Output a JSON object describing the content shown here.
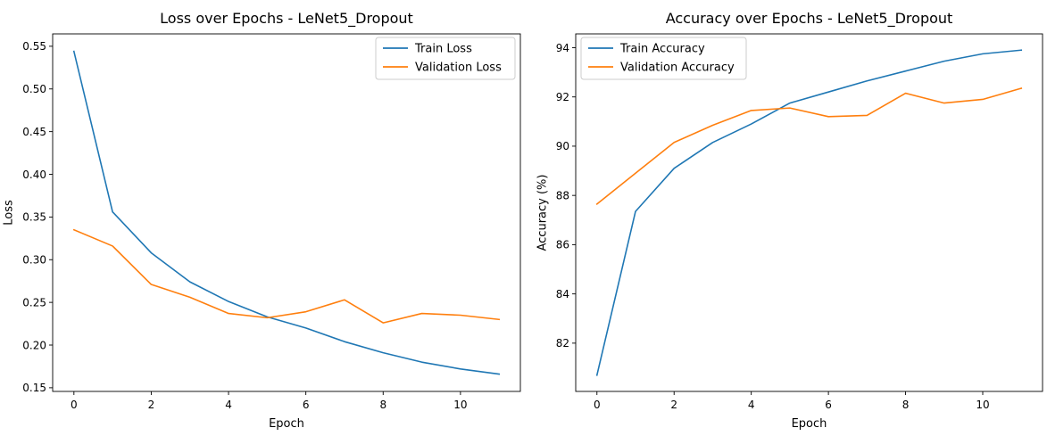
{
  "chart_data": [
    {
      "type": "line",
      "title": "Loss over Epochs - LeNet5_Dropout",
      "xlabel": "Epoch",
      "ylabel": "Loss",
      "xlim": [
        -0.55,
        11.55
      ],
      "ylim": [
        0.1457,
        0.5645
      ],
      "xticks": [
        0,
        2,
        4,
        6,
        8,
        10
      ],
      "yticks": [
        0.15,
        0.2,
        0.25,
        0.3,
        0.35,
        0.4,
        0.45,
        0.5,
        0.55
      ],
      "grid": false,
      "legend_position": "top-right",
      "x": [
        0,
        1,
        2,
        3,
        4,
        5,
        6,
        7,
        8,
        9,
        10,
        11
      ],
      "series": [
        {
          "name": "Train Loss",
          "color": "#1f77b4",
          "values": [
            0.544,
            0.356,
            0.308,
            0.274,
            0.251,
            0.233,
            0.22,
            0.204,
            0.191,
            0.18,
            0.172,
            0.166
          ]
        },
        {
          "name": "Validation Loss",
          "color": "#ff7f0e",
          "values": [
            0.335,
            0.316,
            0.271,
            0.256,
            0.237,
            0.232,
            0.239,
            0.253,
            0.226,
            0.237,
            0.235,
            0.23
          ]
        }
      ]
    },
    {
      "type": "line",
      "title": "Accuracy over Epochs - LeNet5_Dropout",
      "xlabel": "Epoch",
      "ylabel": "Accuracy (%)",
      "xlim": [
        -0.55,
        11.55
      ],
      "ylim": [
        80.04,
        94.56
      ],
      "xticks": [
        0,
        2,
        4,
        6,
        8,
        10
      ],
      "yticks": [
        82,
        84,
        86,
        88,
        90,
        92,
        94
      ],
      "grid": false,
      "legend_position": "top-left",
      "x": [
        0,
        1,
        2,
        3,
        4,
        5,
        6,
        7,
        8,
        9,
        10,
        11
      ],
      "series": [
        {
          "name": "Train Accuracy",
          "color": "#1f77b4",
          "values": [
            80.7,
            87.35,
            89.1,
            90.15,
            90.9,
            91.75,
            92.2,
            92.65,
            93.05,
            93.45,
            93.75,
            93.9
          ]
        },
        {
          "name": "Validation Accuracy",
          "color": "#ff7f0e",
          "values": [
            87.65,
            88.9,
            90.15,
            90.85,
            91.45,
            91.55,
            91.2,
            91.25,
            92.15,
            91.75,
            91.9,
            92.35
          ]
        }
      ]
    }
  ]
}
